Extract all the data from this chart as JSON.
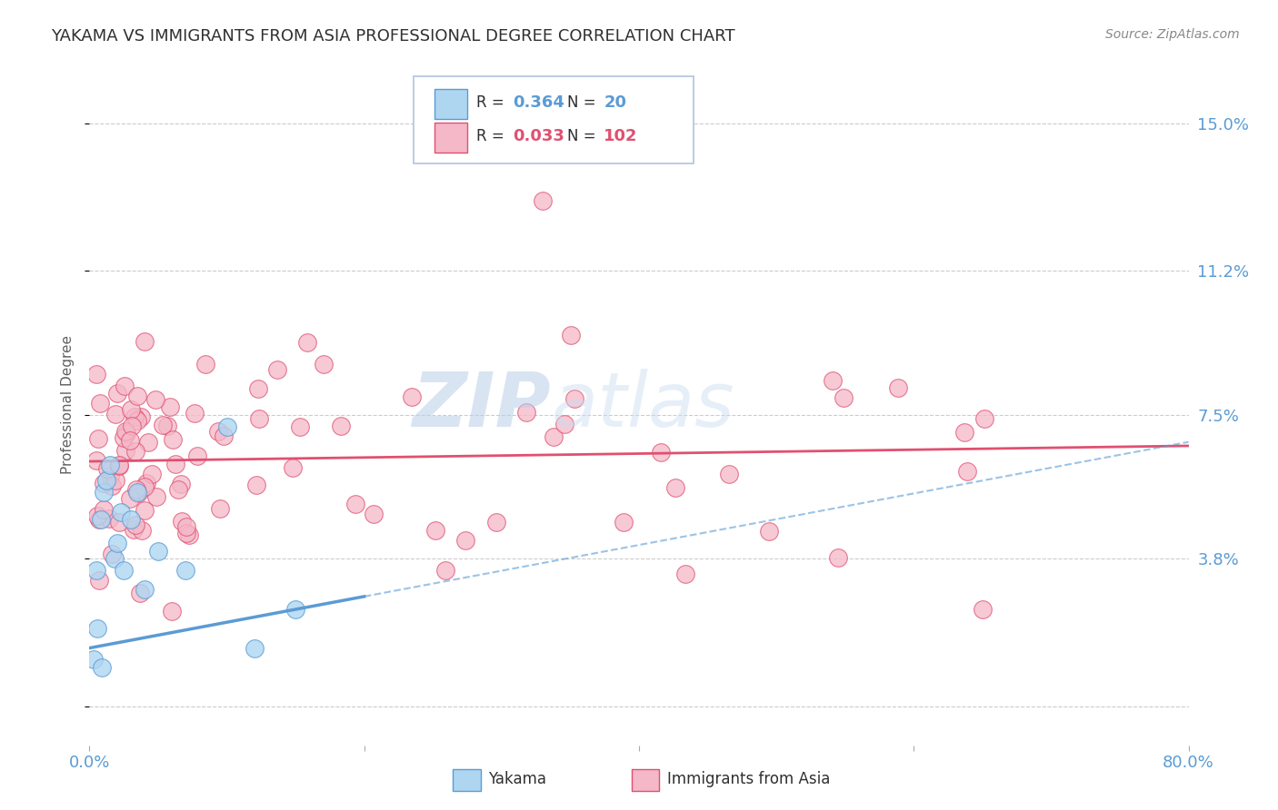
{
  "title": "YAKAMA VS IMMIGRANTS FROM ASIA PROFESSIONAL DEGREE CORRELATION CHART",
  "source_text": "Source: ZipAtlas.com",
  "ylabel": "Professional Degree",
  "xlim": [
    0.0,
    80.0
  ],
  "ylim": [
    -1.0,
    16.5
  ],
  "yticks": [
    0.0,
    3.8,
    7.5,
    11.2,
    15.0
  ],
  "ytick_labels": [
    "",
    "3.8%",
    "7.5%",
    "11.2%",
    "15.0%"
  ],
  "grid_color": "#cccccc",
  "background_color": "#ffffff",
  "axis_label_color": "#5b9bd5",
  "title_color": "#303030",
  "watermark_text": "ZIPatlas",
  "watermark_color": "#d0e4f5",
  "series": [
    {
      "name": "Yakama",
      "fill_color": "#aed6f1",
      "edge_color": "#5b9bd5",
      "R": "0.364",
      "N": "20",
      "x": [
        0.3,
        0.5,
        0.8,
        1.0,
        1.2,
        1.5,
        1.8,
        2.0,
        2.3,
        2.5,
        3.0,
        3.5,
        4.0,
        5.0,
        7.0,
        10.0,
        12.0,
        15.0,
        0.6,
        0.9
      ],
      "y": [
        1.2,
        3.2,
        4.5,
        5.5,
        5.8,
        6.2,
        3.8,
        4.2,
        5.0,
        3.5,
        4.8,
        5.5,
        3.0,
        4.0,
        3.5,
        7.0,
        1.5,
        2.5,
        2.0,
        1.0
      ],
      "trend_y_at_0": 1.5,
      "trend_y_at_80": 6.8,
      "trend_solid_end_x": 20.0
    },
    {
      "name": "Immigrants from Asia",
      "fill_color": "#f4b8c8",
      "edge_color": "#e05070",
      "R": "0.033",
      "N": "102",
      "trend_y_at_0": 6.3,
      "trend_y_at_80": 6.7
    }
  ],
  "bottom_legend": [
    {
      "label": "Yakama",
      "fill": "#aed6f1",
      "edge": "#5b9bd5"
    },
    {
      "label": "Immigrants from Asia",
      "fill": "#f4b8c8",
      "edge": "#e05070"
    }
  ]
}
